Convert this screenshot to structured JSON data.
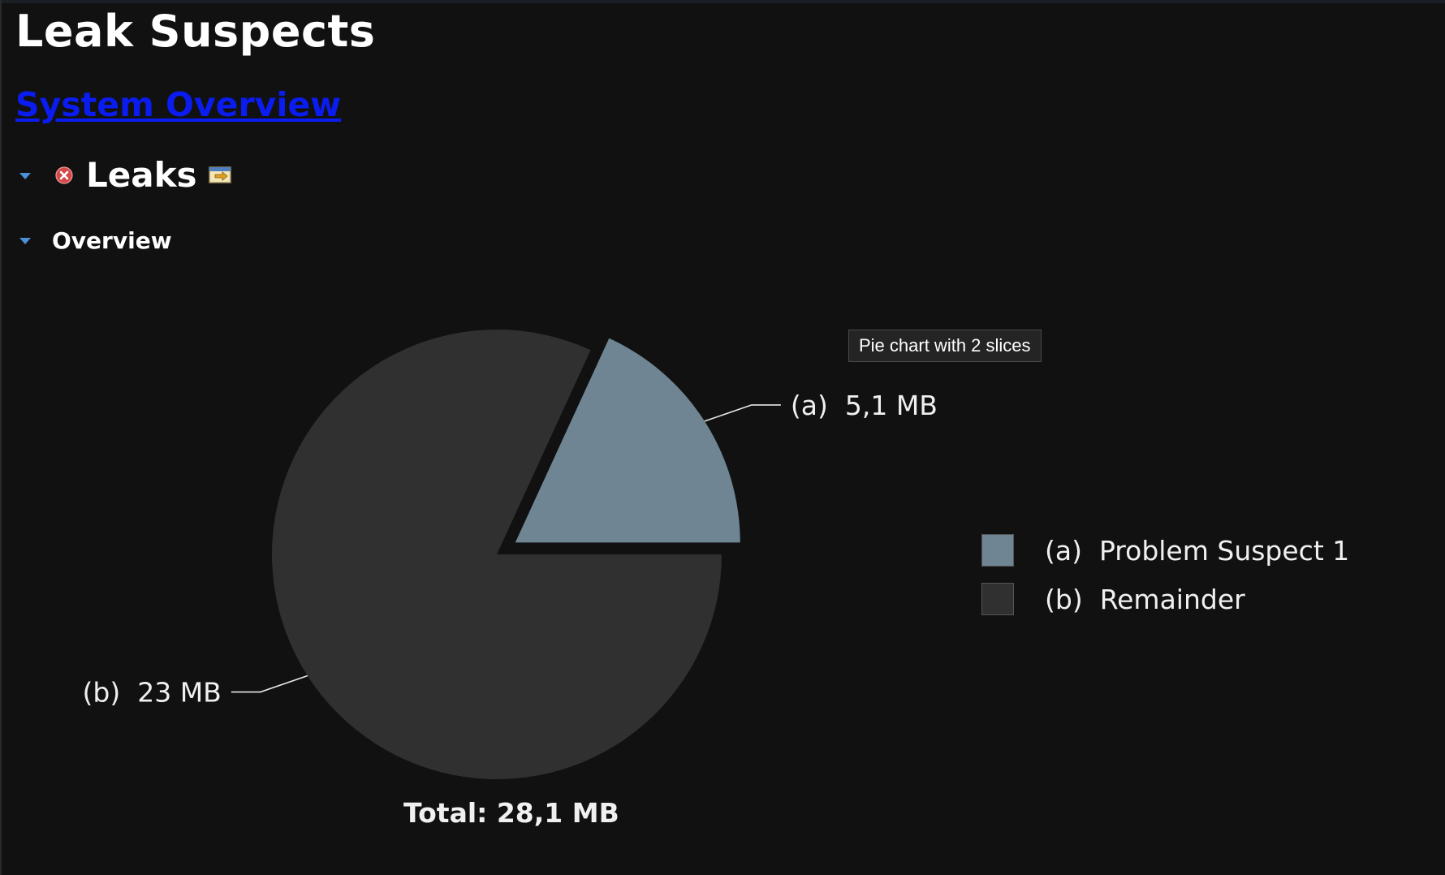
{
  "page": {
    "title": "Leak Suspects",
    "system_overview_link": "System Overview"
  },
  "sections": {
    "leaks_title": "Leaks",
    "overview_label": "Overview"
  },
  "icons": {
    "leaks_toggle": "chevron-down-icon",
    "leaks_status": "error-icon",
    "leaks_details": "details-icon",
    "overview_toggle": "chevron-down-icon"
  },
  "tooltip": "Pie chart with 2 slices",
  "colors": {
    "background": "#111111",
    "link": "#0a1cf0",
    "slice_a": "#6f8594",
    "slice_b": "#303030"
  },
  "chart_data": {
    "type": "pie",
    "slices": [
      {
        "id": "a",
        "label": "(a)",
        "value_text": "5,1 MB",
        "value": 5.1,
        "name": "Problem Suspect 1",
        "color": "#6f8594",
        "exploded": true
      },
      {
        "id": "b",
        "label": "(b)",
        "value_text": "23 MB",
        "value": 23,
        "name": "Remainder",
        "color": "#303030",
        "exploded": false
      }
    ],
    "legend": [
      {
        "label": "(a)",
        "text": "Problem Suspect 1",
        "color": "#6f8594"
      },
      {
        "label": "(b)",
        "text": "Remainder",
        "color": "#303030"
      }
    ],
    "legend_position": "right",
    "total_text": "Total: 28,1 MB"
  }
}
